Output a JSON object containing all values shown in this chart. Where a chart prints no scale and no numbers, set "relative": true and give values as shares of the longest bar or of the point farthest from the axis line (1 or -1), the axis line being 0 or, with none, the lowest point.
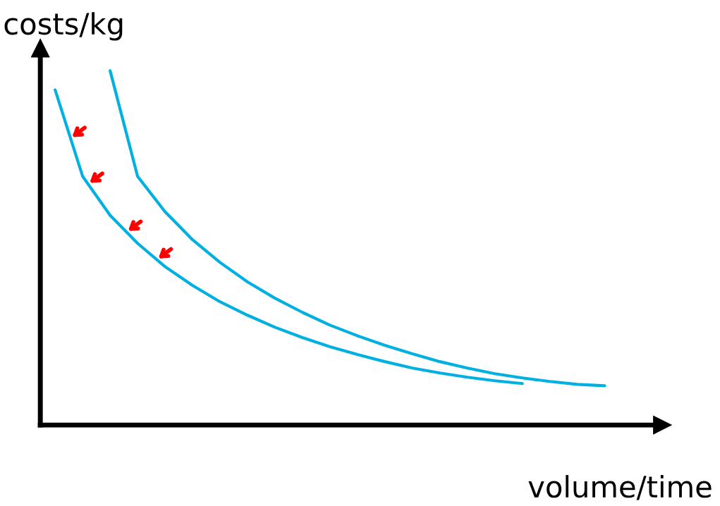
{
  "chart_data": {
    "type": "line",
    "relative": true,
    "xlabel": "volume/time",
    "ylabel": "costs/kg",
    "categories": [
      null,
      null,
      null,
      null,
      null,
      null,
      null,
      null,
      null,
      null,
      null,
      null,
      null,
      null,
      null,
      null,
      null,
      null,
      null,
      null,
      null
    ],
    "series": [
      {
        "color": "#00b0e0",
        "values": [
          0.946,
          0.702,
          0.592,
          0.513,
          0.447,
          0.394,
          0.348,
          0.31,
          0.276,
          0.247,
          0.221,
          0.199,
          0.179,
          0.161,
          0.147,
          0.135,
          0.125,
          0.117,
          null,
          null,
          null
        ]
      },
      {
        "color": "#00b0e0",
        "values": [
          null,
          null,
          1.0,
          0.702,
          0.602,
          0.523,
          0.459,
          0.404,
          0.358,
          0.318,
          0.282,
          0.252,
          0.225,
          0.201,
          0.179,
          0.161,
          0.145,
          0.133,
          0.123,
          0.115,
          0.111
        ]
      }
    ],
    "marker": "none",
    "line_style": "solid"
  }
}
